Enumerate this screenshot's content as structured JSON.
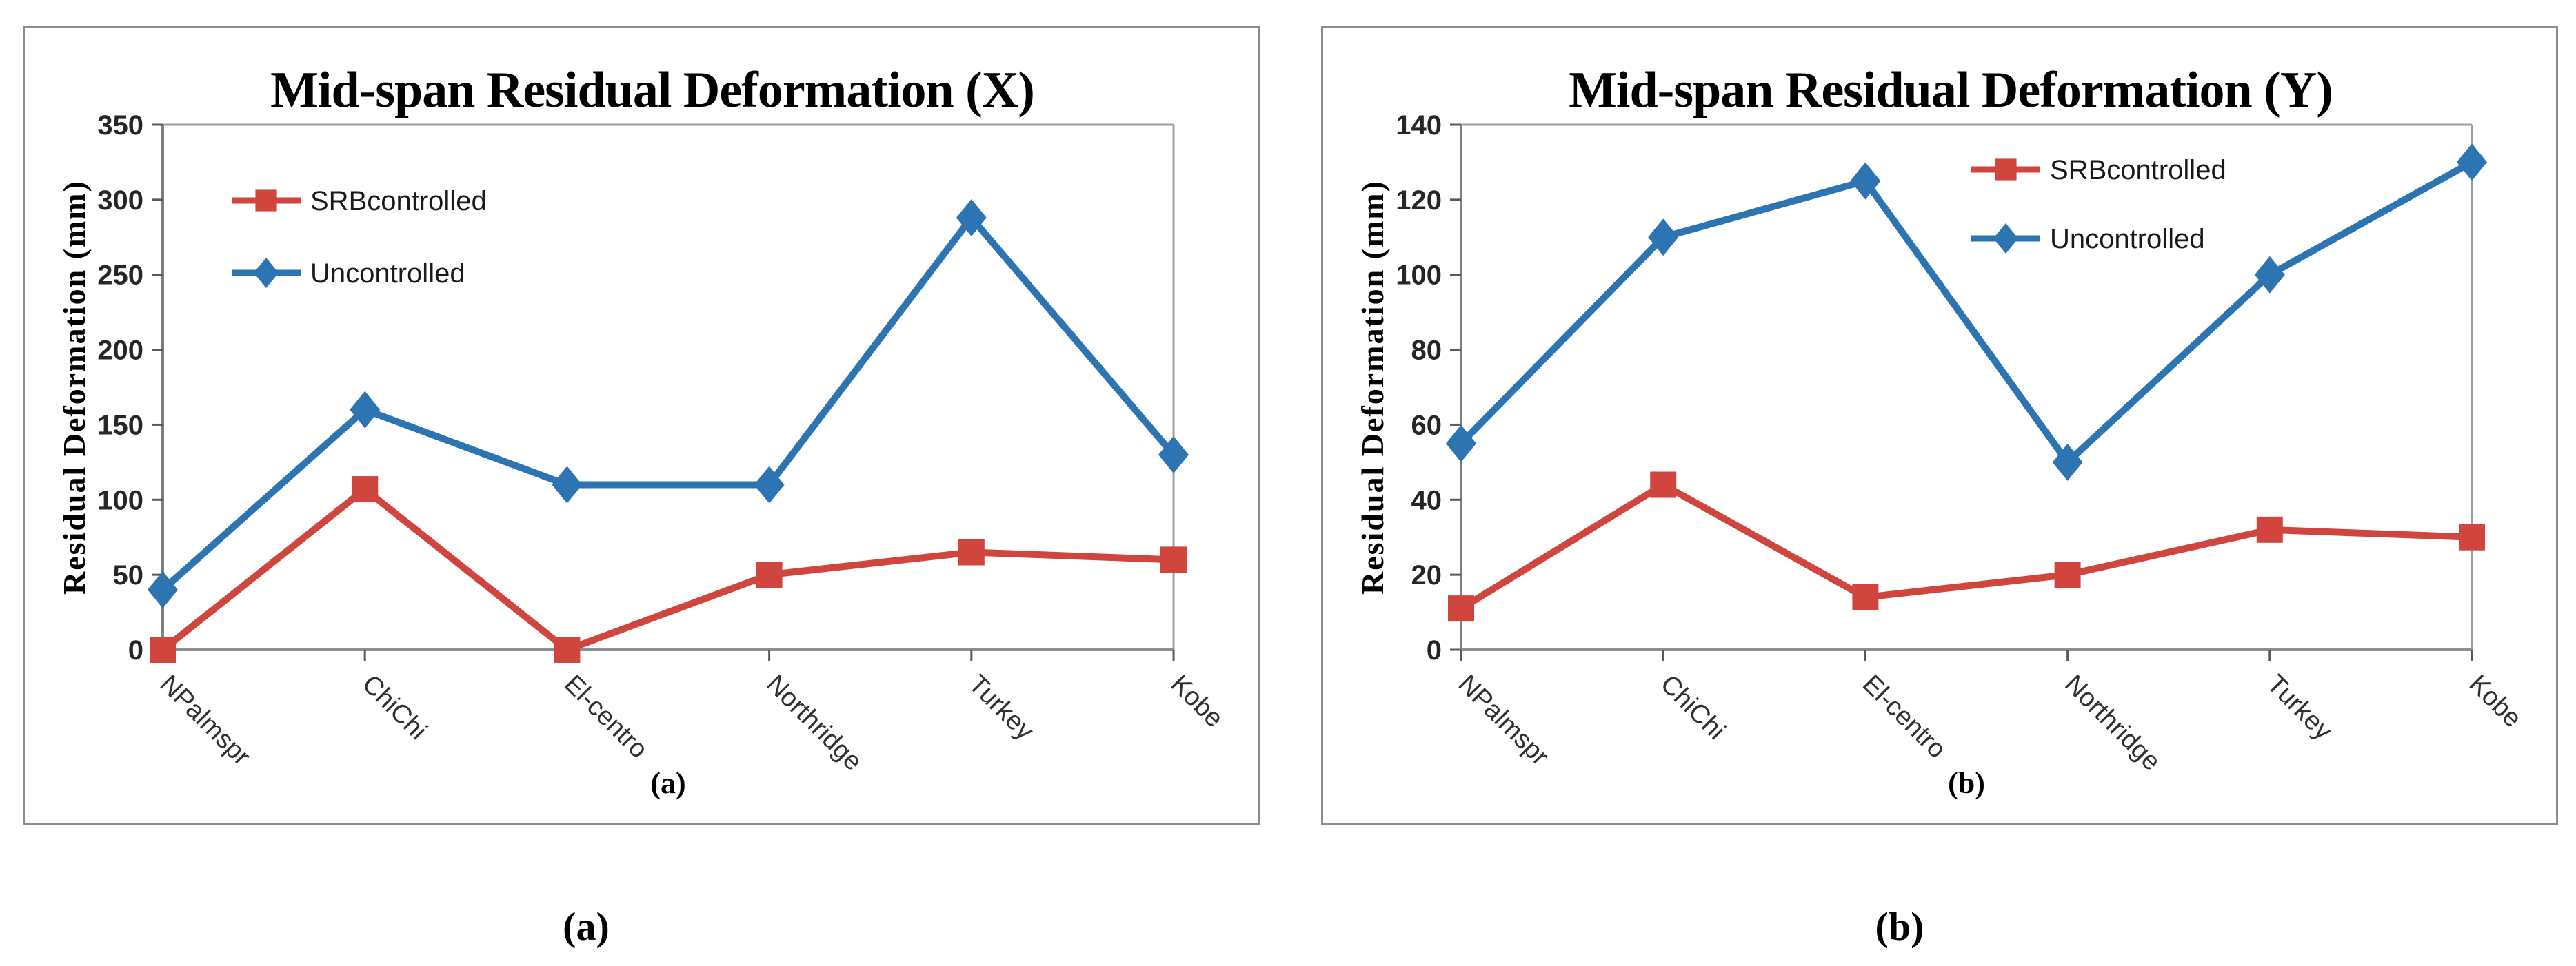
{
  "figure_captions": {
    "a": "(a)",
    "b": "(b)"
  },
  "colors": {
    "series_red": "#d0463f",
    "series_blue": "#2d74b2",
    "panel_border": "#8c8c8c",
    "plot_border": "#9e9e9e",
    "bottom_axis": "#8f8f8f",
    "y_axis": "#7f7f7f",
    "tick": "#595959",
    "tick_label": "#262626",
    "category_label": "#303030",
    "legend_text": "#1a1a1a",
    "title": "#000000"
  },
  "chart_data": [
    {
      "type": "line",
      "title": "Mid-span Residual Deformation (X)",
      "ylabel": "Residual Deformation (mm)",
      "panel_label": "(a)",
      "categories": [
        "NPalmspr",
        "ChiChi",
        "El-centro",
        "Northridge",
        "Turkey",
        "Kobe"
      ],
      "ylim": [
        0,
        350
      ],
      "ytick_step": 50,
      "grid": false,
      "legend_position": "top-left",
      "series": [
        {
          "name": "SRBcontrolled",
          "marker": "square",
          "color": "#d0463f",
          "values": [
            0,
            107,
            0,
            50,
            65,
            60
          ]
        },
        {
          "name": "Uncontrolled",
          "marker": "diamond",
          "color": "#2d74b2",
          "values": [
            40,
            160,
            110,
            110,
            288,
            130
          ]
        }
      ]
    },
    {
      "type": "line",
      "title": "Mid-span Residual Deformation (Y)",
      "ylabel": "Residual Deformation (mm)",
      "panel_label": "(b)",
      "categories": [
        "NPalmspr",
        "ChiChi",
        "El-centro",
        "Northridge",
        "Turkey",
        "Kobe"
      ],
      "ylim": [
        0,
        140
      ],
      "ytick_step": 20,
      "grid": false,
      "legend_position": "top-right",
      "series": [
        {
          "name": "SRBcontrolled",
          "marker": "square",
          "color": "#d0463f",
          "values": [
            11,
            44,
            14,
            20,
            32,
            30
          ]
        },
        {
          "name": "Uncontrolled",
          "marker": "diamond",
          "color": "#2d74b2",
          "values": [
            55,
            110,
            125,
            50,
            100,
            130
          ]
        }
      ]
    }
  ]
}
